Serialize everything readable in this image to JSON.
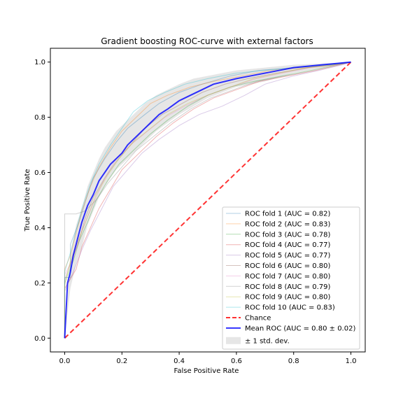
{
  "chart_data": {
    "type": "line",
    "title": "Gradient boosting ROC-curve with external factors",
    "xlabel": "False Positive Rate",
    "ylabel": "True Positive Rate",
    "xlim": [
      -0.05,
      1.05
    ],
    "ylim": [
      -0.05,
      1.05
    ],
    "xticks": [
      "0.0",
      "0.2",
      "0.4",
      "0.6",
      "0.8",
      "1.0"
    ],
    "yticks": [
      "0.0",
      "0.2",
      "0.4",
      "0.6",
      "0.8",
      "1.0"
    ],
    "grid": false,
    "legend_position": "lower-right",
    "series": [
      {
        "name": "ROC fold 1 (AUC = 0.82)",
        "color": "#1f77b4",
        "x": [
          0,
          0,
          0.02,
          0.02,
          0.05,
          0.08,
          0.1,
          0.14,
          0.18,
          0.22,
          0.28,
          0.33,
          0.4,
          0.48,
          0.58,
          0.68,
          0.8,
          0.9,
          1.0
        ],
        "y": [
          0,
          0.22,
          0.22,
          0.34,
          0.42,
          0.52,
          0.58,
          0.65,
          0.71,
          0.76,
          0.81,
          0.85,
          0.89,
          0.92,
          0.95,
          0.97,
          0.98,
          0.99,
          1.0
        ]
      },
      {
        "name": "ROC fold 2 (AUC = 0.83)",
        "color": "#ff7f0e",
        "x": [
          0,
          0,
          0.02,
          0.04,
          0.06,
          0.09,
          0.12,
          0.16,
          0.2,
          0.25,
          0.3,
          0.36,
          0.44,
          0.52,
          0.62,
          0.72,
          0.84,
          0.94,
          1.0
        ],
        "y": [
          0,
          0.25,
          0.3,
          0.38,
          0.46,
          0.55,
          0.62,
          0.69,
          0.75,
          0.8,
          0.85,
          0.88,
          0.91,
          0.93,
          0.95,
          0.97,
          0.98,
          0.99,
          1.0
        ]
      },
      {
        "name": "ROC fold 3 (AUC = 0.78)",
        "color": "#2ca02c",
        "x": [
          0,
          0,
          0.03,
          0.05,
          0.08,
          0.11,
          0.15,
          0.19,
          0.24,
          0.3,
          0.36,
          0.43,
          0.5,
          0.58,
          0.66,
          0.76,
          0.86,
          0.95,
          1.0
        ],
        "y": [
          0,
          0.2,
          0.28,
          0.35,
          0.42,
          0.5,
          0.57,
          0.63,
          0.68,
          0.74,
          0.79,
          0.84,
          0.88,
          0.91,
          0.93,
          0.95,
          0.97,
          0.99,
          1.0
        ]
      },
      {
        "name": "ROC fold 4 (AUC = 0.77)",
        "color": "#d62728",
        "x": [
          0,
          0,
          0.04,
          0.06,
          0.09,
          0.12,
          0.16,
          0.2,
          0.26,
          0.32,
          0.38,
          0.45,
          0.52,
          0.6,
          0.68,
          0.78,
          0.88,
          0.96,
          1.0
        ],
        "y": [
          0,
          0.18,
          0.25,
          0.33,
          0.4,
          0.47,
          0.54,
          0.61,
          0.67,
          0.73,
          0.78,
          0.83,
          0.87,
          0.9,
          0.93,
          0.95,
          0.97,
          0.99,
          1.0
        ]
      },
      {
        "name": "ROC fold 5 (AUC = 0.77)",
        "color": "#9467bd",
        "x": [
          0,
          0,
          0.03,
          0.06,
          0.09,
          0.13,
          0.17,
          0.22,
          0.27,
          0.33,
          0.4,
          0.47,
          0.55,
          0.63,
          0.7,
          0.8,
          0.89,
          0.97,
          1.0
        ],
        "y": [
          0,
          0.17,
          0.24,
          0.32,
          0.39,
          0.47,
          0.55,
          0.61,
          0.67,
          0.72,
          0.77,
          0.81,
          0.84,
          0.88,
          0.92,
          0.95,
          0.97,
          0.99,
          1.0
        ]
      },
      {
        "name": "ROC fold 6 (AUC = 0.80)",
        "color": "#8c564b",
        "x": [
          0,
          0,
          0.02,
          0.05,
          0.07,
          0.1,
          0.14,
          0.18,
          0.23,
          0.28,
          0.34,
          0.41,
          0.48,
          0.56,
          0.64,
          0.74,
          0.85,
          0.94,
          1.0
        ],
        "y": [
          0,
          0.21,
          0.27,
          0.35,
          0.43,
          0.51,
          0.58,
          0.64,
          0.7,
          0.76,
          0.81,
          0.85,
          0.89,
          0.92,
          0.94,
          0.96,
          0.98,
          0.99,
          1.0
        ]
      },
      {
        "name": "ROC fold 7 (AUC = 0.80)",
        "color": "#e377c2",
        "x": [
          0,
          0,
          0.03,
          0.05,
          0.08,
          0.11,
          0.14,
          0.18,
          0.23,
          0.29,
          0.35,
          0.42,
          0.5,
          0.58,
          0.67,
          0.76,
          0.86,
          0.95,
          1.0
        ],
        "y": [
          0,
          0.23,
          0.29,
          0.36,
          0.44,
          0.51,
          0.58,
          0.65,
          0.7,
          0.75,
          0.8,
          0.84,
          0.88,
          0.91,
          0.94,
          0.96,
          0.98,
          0.99,
          1.0
        ]
      },
      {
        "name": "ROC fold 8 (AUC = 0.79)",
        "color": "#7f7f7f",
        "x": [
          0,
          0,
          0.02,
          0.04,
          0.07,
          0.11,
          0.15,
          0.2,
          0.25,
          0.31,
          0.37,
          0.44,
          0.51,
          0.59,
          0.67,
          0.77,
          0.87,
          0.96,
          1.0
        ],
        "y": [
          0,
          0.45,
          0.45,
          0.45,
          0.46,
          0.5,
          0.56,
          0.62,
          0.68,
          0.73,
          0.78,
          0.83,
          0.87,
          0.9,
          0.93,
          0.95,
          0.97,
          0.99,
          1.0
        ]
      },
      {
        "name": "ROC fold 9 (AUC = 0.80)",
        "color": "#bcbd22",
        "x": [
          0,
          0,
          0.02,
          0.05,
          0.08,
          0.11,
          0.15,
          0.19,
          0.24,
          0.3,
          0.36,
          0.43,
          0.5,
          0.58,
          0.66,
          0.75,
          0.85,
          0.94,
          1.0
        ],
        "y": [
          0,
          0.19,
          0.28,
          0.36,
          0.44,
          0.52,
          0.59,
          0.65,
          0.71,
          0.76,
          0.81,
          0.85,
          0.88,
          0.91,
          0.94,
          0.96,
          0.98,
          0.99,
          1.0
        ]
      },
      {
        "name": "ROC fold 10 (AUC = 0.83)",
        "color": "#17becf",
        "x": [
          0,
          0,
          0.02,
          0.04,
          0.06,
          0.09,
          0.12,
          0.16,
          0.2,
          0.24,
          0.29,
          0.35,
          0.42,
          0.5,
          0.6,
          0.7,
          0.82,
          0.93,
          1.0
        ],
        "y": [
          0,
          0.24,
          0.31,
          0.39,
          0.47,
          0.56,
          0.63,
          0.7,
          0.76,
          0.82,
          0.86,
          0.89,
          0.92,
          0.94,
          0.96,
          0.97,
          0.98,
          0.99,
          1.0
        ]
      }
    ],
    "chance": {
      "name": "Chance",
      "color": "#ff0000",
      "x": [
        0,
        1
      ],
      "y": [
        0,
        1
      ]
    },
    "mean": {
      "name": "Mean ROC (AUC = 0.80 ± 0.02)",
      "color": "#0000ff",
      "x": [
        0,
        0.01,
        0.02,
        0.03,
        0.04,
        0.05,
        0.06,
        0.07,
        0.08,
        0.1,
        0.12,
        0.14,
        0.16,
        0.18,
        0.2,
        0.22,
        0.24,
        0.26,
        0.28,
        0.3,
        0.33,
        0.36,
        0.4,
        0.44,
        0.48,
        0.52,
        0.56,
        0.6,
        0.65,
        0.7,
        0.75,
        0.8,
        0.85,
        0.9,
        0.95,
        1.0
      ],
      "y": [
        0,
        0.2,
        0.24,
        0.3,
        0.34,
        0.38,
        0.42,
        0.45,
        0.48,
        0.52,
        0.57,
        0.6,
        0.63,
        0.65,
        0.67,
        0.7,
        0.72,
        0.74,
        0.76,
        0.78,
        0.81,
        0.83,
        0.86,
        0.88,
        0.9,
        0.92,
        0.93,
        0.94,
        0.95,
        0.96,
        0.97,
        0.98,
        0.985,
        0.99,
        0.995,
        1.0
      ]
    },
    "std_band": {
      "name": "± 1 std. dev.",
      "color": "#808080",
      "x": [
        0,
        0.02,
        0.04,
        0.06,
        0.08,
        0.1,
        0.12,
        0.14,
        0.16,
        0.18,
        0.2,
        0.24,
        0.28,
        0.32,
        0.36,
        0.4,
        0.45,
        0.5,
        0.55,
        0.6,
        0.7,
        0.8,
        0.9,
        1.0
      ],
      "lower": [
        0,
        0.18,
        0.27,
        0.33,
        0.41,
        0.46,
        0.51,
        0.55,
        0.58,
        0.61,
        0.63,
        0.67,
        0.71,
        0.75,
        0.78,
        0.81,
        0.84,
        0.87,
        0.89,
        0.91,
        0.93,
        0.96,
        0.98,
        1.0
      ],
      "upper": [
        0,
        0.3,
        0.41,
        0.47,
        0.55,
        0.6,
        0.65,
        0.69,
        0.72,
        0.75,
        0.77,
        0.81,
        0.85,
        0.88,
        0.9,
        0.92,
        0.94,
        0.95,
        0.96,
        0.97,
        0.98,
        0.99,
        0.995,
        1.0
      ]
    }
  }
}
